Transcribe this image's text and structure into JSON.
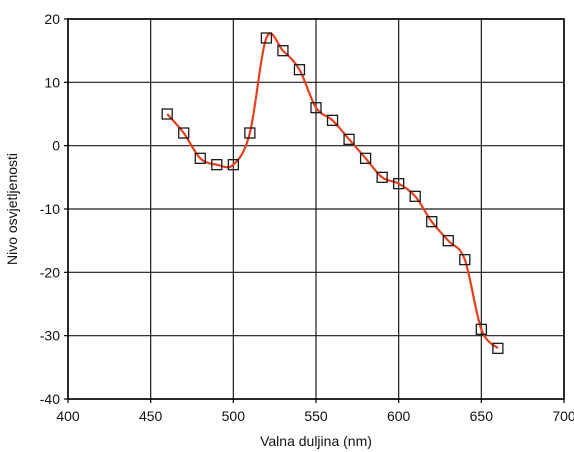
{
  "chart_data": {
    "type": "line",
    "title": "",
    "xlabel": "Valna duljina (nm)",
    "ylabel": "Nivo osvjetljenosti",
    "xlim": [
      400,
      700
    ],
    "ylim": [
      -40,
      20
    ],
    "xticks": [
      400,
      450,
      500,
      550,
      600,
      650,
      700
    ],
    "yticks": [
      -40,
      -30,
      -20,
      -10,
      0,
      10,
      20
    ],
    "grid": true,
    "legend": "none",
    "series": [
      {
        "color": "#e8401c",
        "marker": "open-square",
        "x": [
          460,
          470,
          480,
          490,
          500,
          510,
          520,
          530,
          540,
          550,
          560,
          570,
          580,
          590,
          600,
          610,
          620,
          630,
          640,
          650,
          660
        ],
        "y": [
          5,
          2,
          -2,
          -3,
          -3,
          2,
          17,
          15,
          12,
          6,
          4,
          1,
          -2,
          -5,
          -6,
          -8,
          -12,
          -15,
          -18,
          -29,
          -32
        ]
      }
    ]
  }
}
